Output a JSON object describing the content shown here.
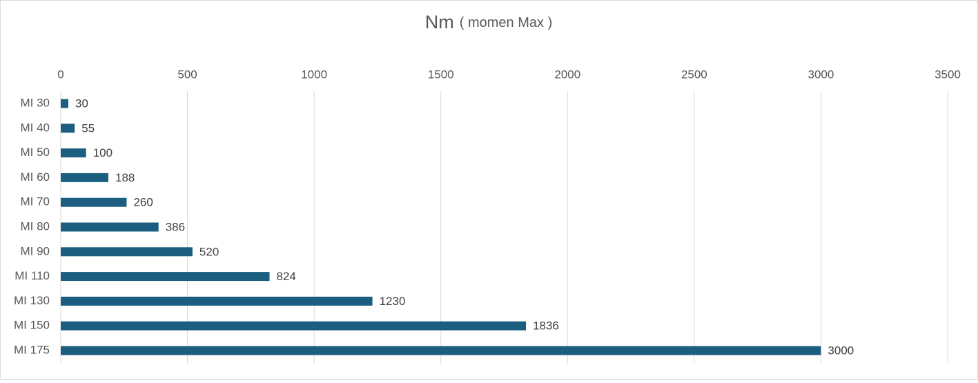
{
  "chart_data": {
    "type": "hbar",
    "title": "Nm",
    "subtitle": "( momen Max )",
    "categories": [
      "MI 30",
      "MI 40",
      "MI 50",
      "MI 60",
      "MI 70",
      "MI 80",
      "MI 90",
      "MI 110",
      "MI 130",
      "MI 150",
      "MI 175"
    ],
    "values": [
      30,
      55,
      100,
      188,
      260,
      386,
      520,
      824,
      1230,
      1836,
      3000
    ],
    "color": "#1b5e80",
    "xlim": [
      0,
      3500
    ],
    "xticks": [
      0,
      500,
      1000,
      1500,
      2000,
      2500,
      3000,
      3500
    ],
    "grid": true
  }
}
